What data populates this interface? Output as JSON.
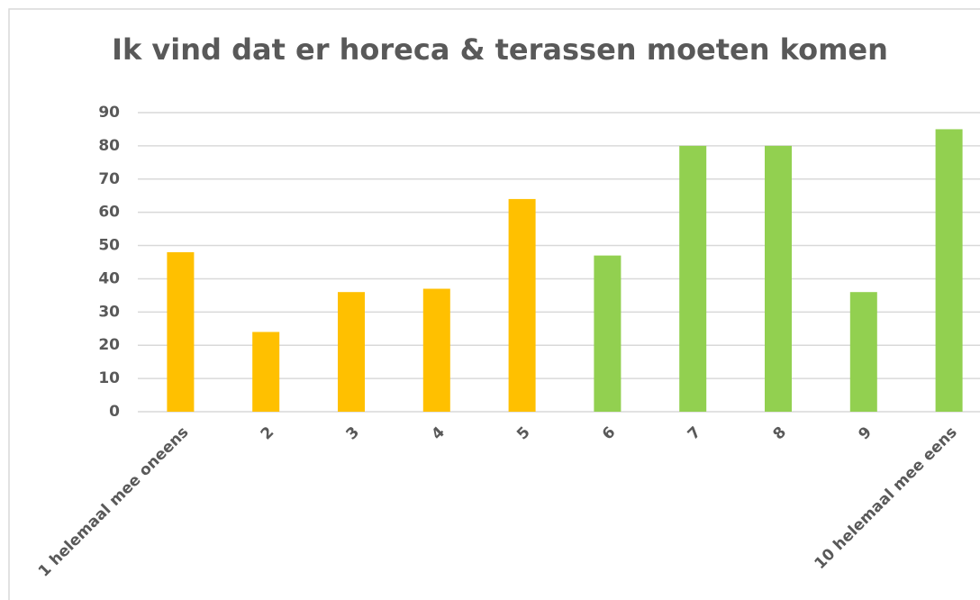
{
  "chart_data": {
    "type": "bar",
    "title": "Ik vind dat er horeca & terassen moeten komen",
    "categories": [
      "1 helemaal mee oneens",
      "2",
      "3",
      "4",
      "5",
      "6",
      "7",
      "8",
      "9",
      "10 helemaal mee eens"
    ],
    "values": [
      48,
      24,
      36,
      37,
      64,
      47,
      80,
      80,
      36,
      85
    ],
    "colors": [
      "#ffc000",
      "#ffc000",
      "#ffc000",
      "#ffc000",
      "#ffc000",
      "#92d050",
      "#92d050",
      "#92d050",
      "#92d050",
      "#92d050"
    ],
    "ylim": [
      0,
      90
    ],
    "yticks": [
      0,
      10,
      20,
      30,
      40,
      50,
      60,
      70,
      80,
      90
    ],
    "grid": true
  }
}
